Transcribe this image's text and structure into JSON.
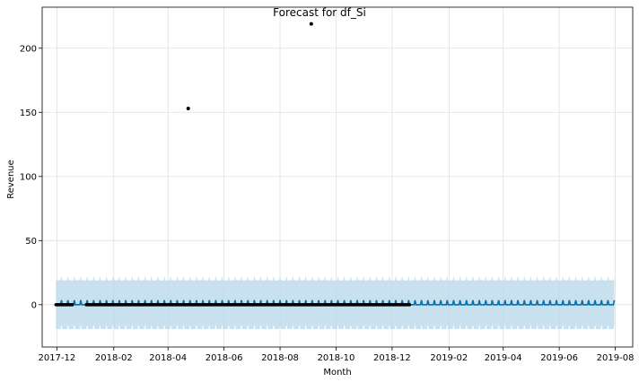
{
  "chart_data": {
    "type": "line",
    "title": "Forecast for df_Si",
    "xlabel": "Month",
    "ylabel": "Revenue",
    "x_tick_labels": [
      "2017-12",
      "2018-02",
      "2018-04",
      "2018-06",
      "2018-08",
      "2018-10",
      "2018-12",
      "2019-02",
      "2019-04",
      "2019-06",
      "2019-08"
    ],
    "y_ticks": [
      0,
      50,
      100,
      150,
      200
    ],
    "xlim": [
      "2017-11-15",
      "2019-08-20"
    ],
    "ylim": [
      -33,
      232
    ],
    "grid": true,
    "series": [
      {
        "kind": "forecast",
        "x_start": "2017-11-30",
        "x_end": "2019-07-31",
        "weekly_pattern": [
          0,
          0,
          0,
          0,
          0,
          0,
          3.5
        ],
        "lower_offset": -19,
        "upper_offset": 19,
        "color": "#0072B2",
        "band_color": "#BCD8EA"
      },
      {
        "kind": "observed",
        "color": "#000000",
        "baseline_ranges": [
          [
            "2017-11-30",
            "2017-12-18"
          ],
          [
            "2018-01-02",
            "2018-03-30"
          ],
          [
            "2018-04-01",
            "2018-12-20"
          ]
        ],
        "baseline_value": 0,
        "outliers": [
          {
            "x": "2018-04-23",
            "y": 153
          },
          {
            "x": "2018-09-04",
            "y": 219
          }
        ]
      }
    ],
    "colors": {
      "line": "#0072B2",
      "band": "#BCD8EA",
      "points": "#000000",
      "grid": "#E0E0E0"
    }
  }
}
